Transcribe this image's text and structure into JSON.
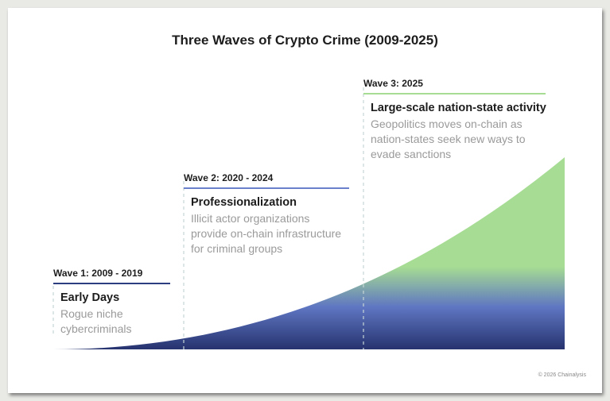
{
  "title": "Three Waves of Crypto Crime (2009-2025)",
  "waves": [
    {
      "label": "Wave 1: 2009 - 2019",
      "title": "Early Days",
      "description_lines": [
        "Rogue niche",
        "cybercriminals"
      ],
      "color": "#2c3e7f"
    },
    {
      "label": "Wave 2: 2020 - 2024",
      "title": "Professionalization",
      "description_lines": [
        "Illicit actor organizations",
        "provide on-chain infrastructure",
        "for criminal groups"
      ],
      "color": "#6a80cc"
    },
    {
      "label": "Wave 3: 2025",
      "title": "Large-scale nation-state activity",
      "description_lines": [
        "Geopolitics moves on-chain as",
        "nation-states seek new ways to",
        "evade sanctions"
      ],
      "color": "#a6dc93"
    }
  ],
  "colors": {
    "area_bottom": "#26336f",
    "area_mid": "#5f76c2",
    "area_top": "#a6dc93",
    "divider": "#c6d6d6"
  },
  "copyright": "© 2026 Chainalysis"
}
